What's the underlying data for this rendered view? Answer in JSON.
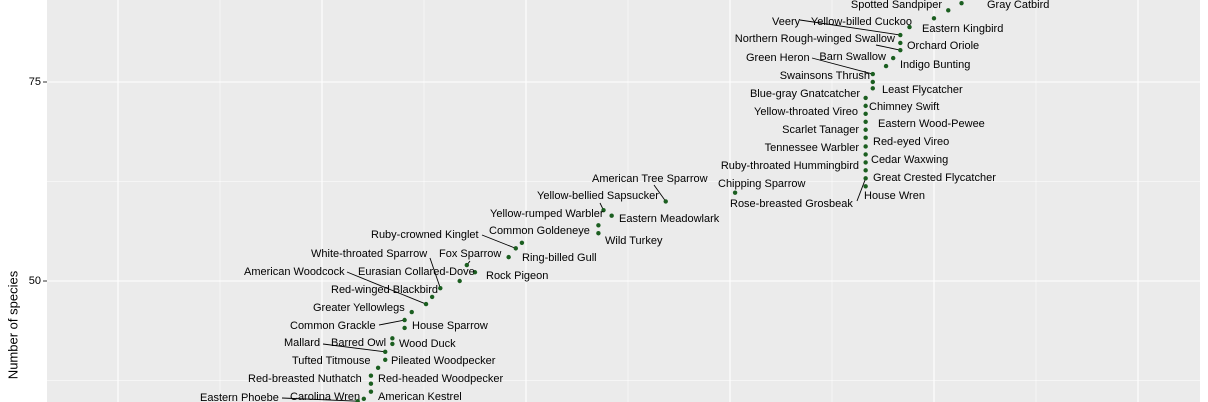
{
  "chart_data": {
    "type": "scatter",
    "y_label": "Number of species",
    "color": "#1b5e20",
    "labels": [
      "Gray Catbird",
      "Spotted Sandpiper",
      "Eastern Kingbird",
      "Yellow-billed Cuckoo",
      "Veery",
      "Orchard Oriole",
      "Northern Rough-winged Swallow",
      "Barn Swallow",
      "Indigo Bunting",
      "Green Heron",
      "Swainsons Thrush",
      "Least Flycatcher",
      "Blue-gray Gnatcatcher",
      "Chimney Swift",
      "Yellow-throated Vireo",
      "Eastern Wood-Pewee",
      "Scarlet Tanager",
      "Red-eyed Vireo",
      "Tennessee Warbler",
      "Cedar Waxwing",
      "Ruby-throated Hummingbird",
      "Great Crested Flycatcher",
      "Rose-breasted Grosbeak",
      "House Wren",
      "Chipping Sparrow",
      "American Tree Sparrow",
      "Yellow-bellied Sapsucker",
      "Yellow-rumped Warbler",
      "Eastern Meadowlark",
      "Wild Turkey",
      "Common Goldeneye",
      "Ruby-crowned Kinglet",
      "Ring-billed Gull",
      "Fox Sparrow",
      "Eurasian Collared-Dove",
      "Rock Pigeon",
      "White-throated Sparrow",
      "Red-winged Blackbird",
      "American Woodcock",
      "Greater Yellowlegs",
      "Common Grackle",
      "House Sparrow",
      "Barred Owl",
      "Wood Duck",
      "Mallard",
      "Pileated Woodpecker",
      "Tufted Titmouse",
      "Red-breasted Nuthatch",
      "Red-headed Woodpecker",
      "American Kestrel",
      "Carolina Wren",
      "Eastern Phoebe"
    ],
    "x": [
      102.7,
      101.4,
      100.0,
      97.6,
      96.7,
      96.7,
      96.7,
      96.0,
      95.3,
      94.0,
      94.0,
      94.0,
      93.3,
      93.3,
      93.3,
      93.3,
      93.3,
      93.3,
      93.3,
      93.3,
      93.3,
      93.3,
      93.3,
      93.3,
      80.5,
      73.7,
      67.6,
      68.4,
      67.1,
      67.1,
      59.6,
      59.0,
      58.3,
      54.2,
      55.0,
      53.5,
      51.6,
      50.8,
      50.2,
      48.8,
      48.1,
      48.1,
      46.9,
      46.9,
      46.2,
      46.2,
      45.5,
      44.8,
      44.8,
      44.8,
      44.1,
      43.5
    ],
    "y": [
      84.9,
      84.0,
      83.0,
      81.9,
      80.9,
      79.9,
      79.0,
      78.0,
      77.0,
      76.0,
      75.0,
      74.2,
      73.0,
      72.0,
      71.0,
      70.0,
      69.0,
      68.0,
      66.9,
      65.9,
      64.9,
      63.9,
      62.9,
      61.9,
      61.1,
      60.0,
      58.9,
      58.2,
      57.0,
      56.0,
      54.8,
      54.1,
      53.0,
      52.0,
      51.1,
      50.0,
      49.1,
      48.0,
      47.1,
      46.1,
      45.1,
      44.1,
      42.8,
      42.1,
      41.1,
      40.1,
      39.1,
      38.1,
      37.1,
      36.1,
      35.2,
      34.9
    ],
    "xlim": [
      13.04,
      126.08
    ],
    "ylim": [
      34.8,
      85.3
    ],
    "yticks": [
      50,
      75
    ],
    "ygrid_minor": [
      37.5,
      62.5
    ],
    "xgrid": [
      20,
      40,
      60,
      80,
      100,
      120
    ],
    "xgrid_minor": [
      30,
      50,
      70,
      90,
      110
    ],
    "grid": true
  }
}
